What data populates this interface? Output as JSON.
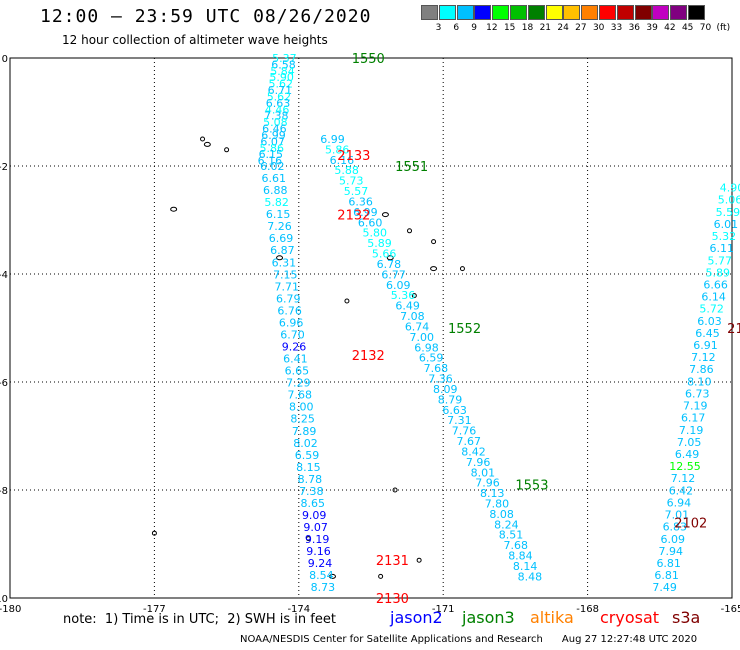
{
  "header": {
    "title": "12:00 — 23:59 UTC 08/26/2020",
    "subtitle": "12 hour collection of altimeter wave heights"
  },
  "color_scale": {
    "labels": [
      "3",
      "6",
      "9",
      "12",
      "15",
      "18",
      "21",
      "24",
      "27",
      "30",
      "33",
      "36",
      "39",
      "42",
      "45",
      "70",
      "(ft)"
    ],
    "colors": [
      "#808080",
      "#00ffff",
      "#00c0ff",
      "#0000ff",
      "#00ff00",
      "#00c000",
      "#008000",
      "#ffff00",
      "#ffc000",
      "#ff8000",
      "#ff0000",
      "#c00000",
      "#800000",
      "#c000c0",
      "#800080",
      "#000000"
    ]
  },
  "axes": {
    "x_ticks": [
      "-180",
      "-177",
      "-174",
      "-171",
      "-168",
      "-165"
    ],
    "y_ticks": [
      "0",
      "-2",
      "-4",
      "-6",
      "-8",
      "-10"
    ],
    "x_range": [
      -180,
      -165
    ],
    "y_range": [
      0,
      -10
    ]
  },
  "tracks": [
    {
      "satellite": "jason3",
      "label": "1550",
      "lon": -172.9,
      "lat": 0.0
    },
    {
      "satellite": "jason3",
      "label": "1551",
      "lon": -172.0,
      "lat": -2.0
    },
    {
      "satellite": "jason3",
      "label": "1552",
      "lon": -170.9,
      "lat": -5.0
    },
    {
      "satellite": "jason3",
      "label": "1553",
      "lon": -169.5,
      "lat": -7.9
    },
    {
      "satellite": "cryosat",
      "label": "2133",
      "lon": -173.2,
      "lat": -1.8
    },
    {
      "satellite": "cryosat",
      "label": "2132",
      "lon": -173.2,
      "lat": -2.9
    },
    {
      "satellite": "cryosat",
      "label": "2132",
      "lon": -172.9,
      "lat": -5.5
    },
    {
      "satellite": "cryosat",
      "label": "2131",
      "lon": -172.4,
      "lat": -9.3
    },
    {
      "satellite": "cryosat",
      "label": "2130",
      "lon": -172.4,
      "lat": -10.0
    },
    {
      "satellite": "s3a",
      "label": "2102",
      "lon": -166.2,
      "lat": -8.6
    },
    {
      "satellite": "s3a",
      "label": "21",
      "lon": -165.1,
      "lat": -5.0
    }
  ],
  "obs_tracks": [
    {
      "start": [
        -174.3,
        0.0
      ],
      "end": [
        -174.6,
        -1.9
      ],
      "sat": "cryosat",
      "values": [
        "5.37",
        "6.58",
        "5.84",
        "5.90",
        "5.62",
        "6.71",
        "5.62",
        "6.63",
        "4.46",
        "7.38",
        "5.08",
        "6.46",
        "6.99",
        "6.07",
        "5.86",
        "6.15",
        "6.16"
      ]
    },
    {
      "start": [
        -174.55,
        -2.0
      ],
      "end": [
        -173.5,
        -9.8
      ],
      "sat": "cryosat",
      "values": [
        "6.02",
        "6.61",
        "6.88",
        "5.82",
        "6.15",
        "7.26",
        "6.69",
        "6.87",
        "6.31",
        "7.15",
        "7.71",
        "6.79",
        "6.76",
        "6.96",
        "6.70",
        "9.26",
        "6.41",
        "6.65",
        "7.29",
        "7.68",
        "8.00",
        "8.25",
        "7.89",
        "8.02",
        "6.59",
        "8.15",
        "8.78",
        "7.38",
        "8.65",
        "9.09",
        "9.07",
        "9.19",
        "9.16",
        "9.24",
        "8.54",
        "8.73"
      ]
    },
    {
      "start": [
        -173.3,
        -1.5
      ],
      "end": [
        -169.2,
        -9.6
      ],
      "sat": "jason3",
      "values": [
        "6.99",
        "5.86",
        "6.16",
        "5.88",
        "5.73",
        "5.57",
        "6.36",
        "6.99",
        "6.60",
        "5.80",
        "5.89",
        "5.66",
        "6.78",
        "6.77",
        "6.09",
        "5.36",
        "6.49",
        "7.08",
        "6.74",
        "7.00",
        "6.98",
        "6.59",
        "7.68",
        "7.36",
        "8.09",
        "8.79",
        "6.63",
        "7.31",
        "7.76",
        "7.67",
        "8.42",
        "7.96",
        "8.01",
        "7.96",
        "8.13",
        "7.80",
        "8.08",
        "8.24",
        "8.51",
        "7.68",
        "8.84",
        "8.14",
        "8.48"
      ]
    },
    {
      "start": [
        -165.0,
        -2.4
      ],
      "end": [
        -166.4,
        -9.8
      ],
      "sat": "s3a",
      "values": [
        "4.90",
        "5.06",
        "5.59",
        "6.01",
        "5.32",
        "6.11",
        "5.77",
        "5.89",
        "6.66",
        "6.14",
        "5.72",
        "6.03",
        "6.45",
        "6.91",
        "7.12",
        "7.86",
        "8.10",
        "6.73",
        "7.19",
        "6.17",
        "7.19",
        "7.05",
        "6.49",
        "12.55",
        "7.12",
        "6.42",
        "6.94",
        "7.01",
        "6.83",
        "6.09",
        "7.94",
        "6.81",
        "6.81",
        "7.49"
      ]
    }
  ],
  "footnote": {
    "text": "note:  1) Time is in UTC;  2) SWH is in feet",
    "satellites": [
      {
        "name": "jason2",
        "color": "#0000ff"
      },
      {
        "name": "jason3",
        "color": "#008000"
      },
      {
        "name": "altika",
        "color": "#ff8000"
      },
      {
        "name": "cryosat",
        "color": "#ff0000"
      },
      {
        "name": "s3a",
        "color": "#800000"
      }
    ]
  },
  "credit": "NOAA/NESDIS Center for Satellite Applications and Research      Aug 27 12:27:48 UTC 2020"
}
